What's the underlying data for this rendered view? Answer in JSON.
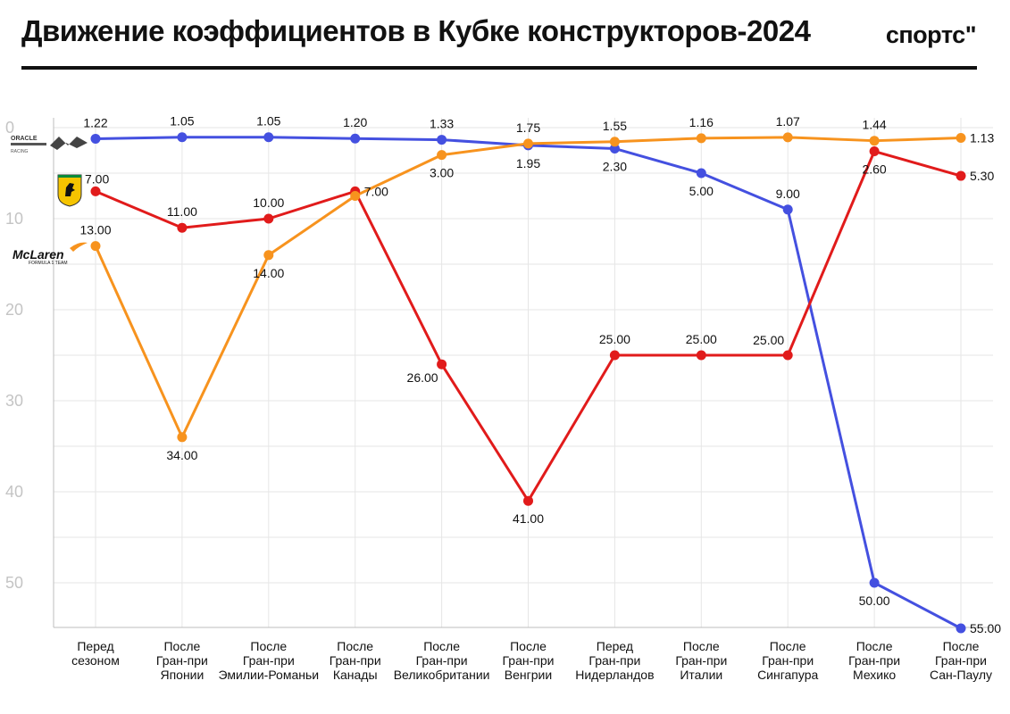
{
  "header": {
    "title": "Движение коэффициентов в Кубке конструкторов-2024",
    "brand": "спортс\""
  },
  "chart_data": {
    "type": "line",
    "title": "Движение коэффициентов в Кубке конструкторов-2024",
    "xlabel": "",
    "ylabel": "",
    "y_inverted": true,
    "ylim": [
      0,
      55
    ],
    "yticks": [
      0,
      10,
      20,
      30,
      40,
      50
    ],
    "grid": true,
    "categories": [
      [
        "Перед",
        "сезоном"
      ],
      [
        "После",
        "Гран-при",
        "Японии"
      ],
      [
        "После",
        "Гран-при",
        "Эмилии-Романьи"
      ],
      [
        "После",
        "Гран-при",
        "Канады"
      ],
      [
        "После",
        "Гран-при",
        "Великобритании"
      ],
      [
        "После",
        "Гран-при",
        "Венгрии"
      ],
      [
        "Перед",
        "Гран-при",
        "Нидерландов"
      ],
      [
        "После",
        "Гран-при",
        "Италии"
      ],
      [
        "После",
        "Гран-при",
        "Сингапура"
      ],
      [
        "После",
        "Гран-при",
        "Мехико"
      ],
      [
        "После",
        "Гран-при",
        "Сан-Паулу"
      ]
    ],
    "series": [
      {
        "key": "redbull",
        "color": "#4450e0",
        "values": [
          1.22,
          1.05,
          1.05,
          1.2,
          1.33,
          1.95,
          2.3,
          5.0,
          9.0,
          50.0,
          55.0
        ],
        "labels": [
          "1.22",
          "1.05",
          "1.05",
          "1.20",
          "1.33",
          "1.95",
          "2.30",
          "5.00",
          "9.00",
          "50.00",
          "55.00"
        ],
        "label_pos": [
          "above",
          "above",
          "above",
          "above",
          "above",
          "below",
          "below",
          "below",
          "above",
          "below",
          "right"
        ]
      },
      {
        "key": "ferrari",
        "color": "#e11b1b",
        "values": [
          7.0,
          11.0,
          10.0,
          7.0,
          26.0,
          41.0,
          25.0,
          25.0,
          25.0,
          2.6,
          5.3
        ],
        "labels": [
          "7.00",
          "11.00",
          "10.00",
          "7.00",
          "26.00",
          "41.00",
          "25.00",
          "25.00",
          "25.00",
          "2.60",
          "5.30"
        ],
        "label_pos": [
          "above-right",
          "above",
          "above",
          "right",
          "below-left",
          "below",
          "above",
          "above",
          "above-left",
          "below",
          "right"
        ]
      },
      {
        "key": "mclaren",
        "color": "#f7931e",
        "values": [
          13.0,
          34.0,
          14.0,
          7.5,
          3.0,
          1.75,
          1.55,
          1.16,
          1.07,
          1.44,
          1.13
        ],
        "labels": [
          "13.00",
          "34.00",
          "14.00",
          "",
          "3.00",
          "1.75",
          "1.55",
          "1.16",
          "1.07",
          "1.44",
          "1.13"
        ],
        "label_pos": [
          "above",
          "below",
          "below",
          "none",
          "below",
          "above",
          "above",
          "above",
          "above",
          "above",
          "right"
        ]
      }
    ]
  },
  "logos": {
    "redbull_text": "ORACLE",
    "redbull_sub": "RACING",
    "mclaren_text": "McLaren",
    "mclaren_sub": "FORMULA 1 TEAM"
  }
}
